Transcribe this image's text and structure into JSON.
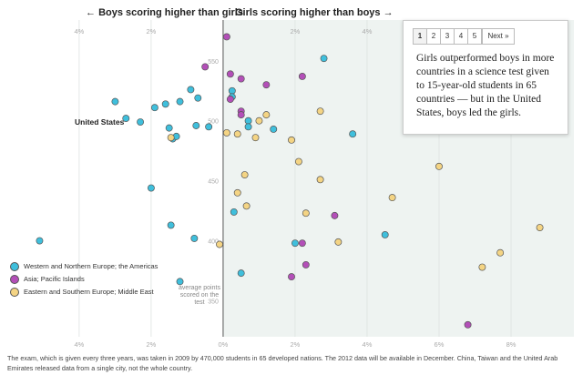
{
  "header": {
    "boys_label": "Boys scoring higher than girls",
    "girls_label": "Girls scoring higher than boys",
    "left_arrow": "←",
    "right_arrow": "→"
  },
  "pager": {
    "pages": [
      "1",
      "2",
      "3",
      "4",
      "5"
    ],
    "active": "1",
    "next_label": "Next »"
  },
  "callout": {
    "text": "Girls outperformed boys in more countries in a science test given to 15-year-old students in 65 countries — but in the United States, boys led the girls."
  },
  "legend": [
    {
      "label": "Western and Northern Europe; the Americas",
      "color": "#3fbfdc"
    },
    {
      "label": "Asia; Pacific Islands",
      "color": "#b34fb8"
    },
    {
      "label": "Eastern and Southern Europe; Middle East",
      "color": "#f4d484"
    }
  ],
  "annotations": {
    "us_label": "United States",
    "y_unit_label": "average points scored on the test"
  },
  "footnote": "The exam, which is given every three years, was taken in 2009 by 470,000 students in 65 developed nations. The 2012 data will be available in December. China, Taiwan and the United Arab Emirates released data from a single city, not the whole country.",
  "chart_data": {
    "type": "scatter",
    "x_unit": "percent gap between girls and boys scoring at the highest level",
    "x_tick_labels": {
      "top": [
        "4%",
        "2%",
        "2%",
        "4%"
      ],
      "bottom": [
        "4%",
        "2%",
        "0%",
        "2%",
        "4%",
        "6%",
        "8%"
      ]
    },
    "x_ticks_top": [
      -4,
      -2,
      2,
      4
    ],
    "x_ticks_bottom": [
      -4,
      -2,
      0,
      2,
      4,
      6,
      8
    ],
    "y_ticks": [
      350,
      400,
      450,
      500,
      550
    ],
    "xlim": [
      -6.2,
      10.0
    ],
    "ylim": [
      320,
      584
    ],
    "zero_line": 0,
    "shaded_region": "x > 0",
    "colors": {
      "Western and Northern Europe; the Americas": "#3fbfdc",
      "Asia; Pacific Islands": "#b34fb8",
      "Eastern and Southern Europe; Middle East": "#f4d484"
    },
    "series": [
      {
        "name": "Western and Northern Europe; the Americas",
        "points": [
          [
            -5.1,
            400
          ],
          [
            -3.0,
            516
          ],
          [
            -2.7,
            502
          ],
          [
            -2.3,
            499
          ],
          [
            -1.9,
            511
          ],
          [
            -1.6,
            514
          ],
          [
            -1.2,
            516
          ],
          [
            -0.9,
            526
          ],
          [
            -0.7,
            519
          ],
          [
            -1.5,
            494
          ],
          [
            -1.4,
            485
          ],
          [
            -1.3,
            487
          ],
          [
            -0.75,
            496
          ],
          [
            -0.4,
            495
          ],
          [
            -2.0,
            444
          ],
          [
            -1.45,
            413
          ],
          [
            -0.8,
            402
          ],
          [
            -1.2,
            366
          ],
          [
            0.25,
            525
          ],
          [
            0.25,
            520
          ],
          [
            0.7,
            500
          ],
          [
            0.7,
            495
          ],
          [
            1.4,
            493
          ],
          [
            2.8,
            552
          ],
          [
            3.6,
            489
          ],
          [
            0.3,
            424
          ],
          [
            2.0,
            398
          ],
          [
            4.5,
            405
          ],
          [
            0.5,
            373
          ]
        ]
      },
      {
        "name": "Asia; Pacific Islands",
        "points": [
          [
            0.1,
            570
          ],
          [
            -0.5,
            545
          ],
          [
            0.2,
            539
          ],
          [
            0.5,
            535
          ],
          [
            1.2,
            530
          ],
          [
            2.2,
            537
          ],
          [
            0.2,
            518
          ],
          [
            0.5,
            508
          ],
          [
            0.5,
            505
          ],
          [
            3.1,
            421
          ],
          [
            2.2,
            398
          ],
          [
            2.3,
            380
          ],
          [
            1.9,
            370
          ],
          [
            6.8,
            330
          ]
        ]
      },
      {
        "name": "Eastern and Southern Europe; Middle East",
        "points": [
          [
            1.2,
            505
          ],
          [
            2.7,
            508
          ],
          [
            1.0,
            500
          ],
          [
            0.1,
            490
          ],
          [
            0.4,
            489
          ],
          [
            0.9,
            486
          ],
          [
            1.9,
            484
          ],
          [
            2.1,
            466
          ],
          [
            0.6,
            455
          ],
          [
            0.4,
            440
          ],
          [
            2.7,
            451
          ],
          [
            6.0,
            462
          ],
          [
            0.65,
            429
          ],
          [
            2.3,
            423
          ],
          [
            3.2,
            399
          ],
          [
            4.7,
            436
          ],
          [
            8.8,
            411
          ],
          [
            7.7,
            390
          ],
          [
            7.2,
            378
          ],
          [
            -0.1,
            397
          ],
          [
            -1.45,
            486
          ]
        ]
      }
    ],
    "highlight": {
      "label": "United States",
      "point": [
        -2.7,
        502
      ]
    }
  }
}
